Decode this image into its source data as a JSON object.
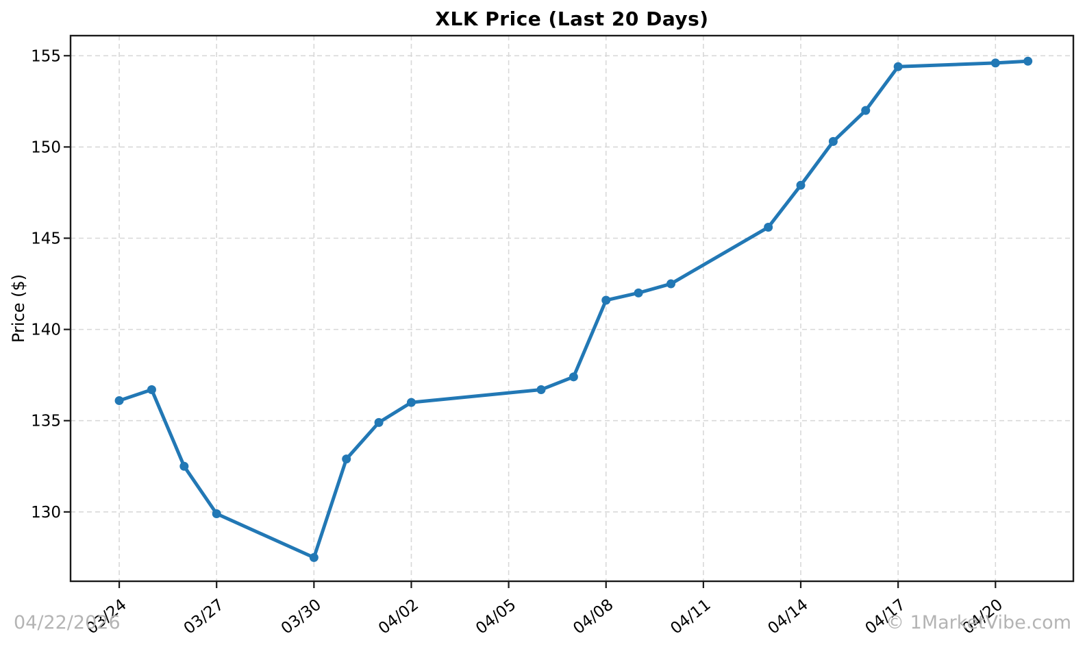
{
  "watermarks": {
    "date": "04/22/2026",
    "brand": "© 1MarketVibe.com"
  },
  "chart_data": {
    "type": "line",
    "title": "XLK Price (Last 20 Days)",
    "xlabel": "",
    "ylabel": "Price ($)",
    "year": 2026,
    "series": [
      {
        "name": "XLK",
        "x": [
          "03/24",
          "03/25",
          "03/26",
          "03/27",
          "03/30",
          "03/31",
          "04/01",
          "04/02",
          "04/06",
          "04/07",
          "04/08",
          "04/09",
          "04/10",
          "04/13",
          "04/14",
          "04/15",
          "04/16",
          "04/17",
          "04/20",
          "04/21"
        ],
        "y": [
          136.1,
          136.7,
          132.5,
          129.9,
          127.5,
          132.9,
          134.9,
          136.0,
          136.7,
          137.4,
          141.6,
          142.0,
          142.5,
          145.6,
          147.9,
          150.3,
          152.0,
          154.4,
          154.6,
          154.7
        ]
      }
    ],
    "x_tick_labels": [
      "03/24",
      "03/27",
      "03/30",
      "04/02",
      "04/05",
      "04/08",
      "04/11",
      "04/14",
      "04/17",
      "04/20"
    ],
    "y_ticks": [
      130,
      135,
      140,
      145,
      150,
      155
    ],
    "ylim": [
      126.2,
      156.1
    ],
    "xlim_days_from_first_point": [
      -1.5,
      29.4
    ],
    "grid": true,
    "legend": false,
    "marker": "circle",
    "colors": {
      "line": "#2278b5",
      "grid": "#d8d8d8",
      "spine": "#1a1a1a",
      "tick_text": "#000000"
    }
  }
}
